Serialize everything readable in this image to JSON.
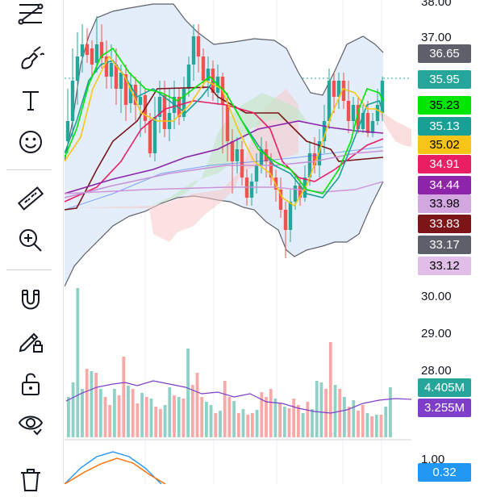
{
  "toolbar": {
    "tools": [
      {
        "name": "trend-line-tools-icon"
      },
      {
        "name": "brush-icon"
      },
      {
        "name": "text-tool-icon"
      },
      {
        "name": "emoji-icon"
      },
      {
        "name": "ruler-icon"
      },
      {
        "name": "zoom-in-icon"
      },
      {
        "name": "magnet-icon"
      },
      {
        "name": "lock-drawing-icon"
      },
      {
        "name": "unlock-icon"
      },
      {
        "name": "eye-icon"
      },
      {
        "name": "trash-icon"
      }
    ]
  },
  "price_axis": {
    "ticks": [
      "38.00",
      "37.00",
      "30.00",
      "29.00",
      "28.00",
      "1.00"
    ]
  },
  "price_labels": [
    {
      "value": "36.65",
      "bg": "#5d606b",
      "fg": "#ffffff"
    },
    {
      "value": "35.95",
      "bg": "#26a69a",
      "fg": "#ffffff"
    },
    {
      "value": "35.23",
      "bg": "#00e600",
      "fg": "#000000"
    },
    {
      "value": "35.13",
      "bg": "#18a096",
      "fg": "#ffffff"
    },
    {
      "value": "35.02",
      "bg": "#f7c518",
      "fg": "#000000"
    },
    {
      "value": "34.91",
      "bg": "#e91e63",
      "fg": "#ffffff"
    },
    {
      "value": "34.44",
      "bg": "#8e24aa",
      "fg": "#ffffff"
    },
    {
      "value": "33.98",
      "bg": "#d3a8e0",
      "fg": "#000000"
    },
    {
      "value": "33.83",
      "bg": "#7b1518",
      "fg": "#ffffff"
    },
    {
      "value": "33.17",
      "bg": "#5d606b",
      "fg": "#ffffff"
    },
    {
      "value": "33.12",
      "bg": "#e1bee7",
      "fg": "#000000"
    }
  ],
  "volume_labels": [
    {
      "value": "4.405M",
      "bg": "#26a69a",
      "fg": "#ffffff"
    },
    {
      "value": "3.255M",
      "bg": "#7e3ec9",
      "fg": "#ffffff"
    }
  ],
  "indicator_labels": [
    {
      "value": "0.32",
      "bg": "#2196f3",
      "fg": "#ffffff"
    }
  ],
  "colors": {
    "up": "#26a69a",
    "down": "#ef5350",
    "volume_up": "#8fd0c7",
    "volume_down": "#f7a9a7",
    "bollinger": "#5d606b",
    "band_fill": "#e3eefa",
    "cloud_green": "#c8e6c9",
    "cloud_red": "#f8c8c8"
  }
}
